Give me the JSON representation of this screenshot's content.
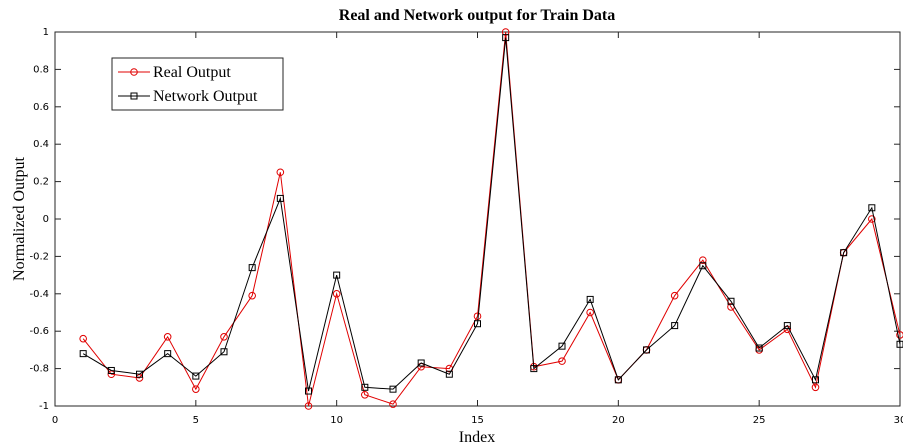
{
  "chart_data": {
    "type": "line",
    "title": "Real and Network output for Train Data",
    "x_label": "Index",
    "y_label": "Normalized Output",
    "x": [
      1,
      2,
      3,
      4,
      5,
      6,
      7,
      8,
      9,
      10,
      11,
      12,
      13,
      14,
      15,
      16,
      17,
      18,
      19,
      20,
      21,
      22,
      23,
      24,
      25,
      26,
      27,
      28,
      29,
      30
    ],
    "series": [
      {
        "name": "Real Output",
        "color": "#e00000",
        "marker": "circle",
        "values": [
          -0.64,
          -0.83,
          -0.85,
          -0.63,
          -0.91,
          -0.63,
          -0.41,
          0.25,
          -1.0,
          -0.4,
          -0.94,
          -0.99,
          -0.79,
          -0.8,
          -0.52,
          1.0,
          -0.79,
          -0.76,
          -0.5,
          -0.86,
          -0.7,
          -0.41,
          -0.22,
          -0.47,
          -0.7,
          -0.59,
          -0.9,
          -0.18,
          0.0,
          -0.62
        ]
      },
      {
        "name": "Network Output",
        "color": "#000000",
        "marker": "square",
        "values": [
          -0.72,
          -0.81,
          -0.83,
          -0.72,
          -0.84,
          -0.71,
          -0.26,
          0.11,
          -0.92,
          -0.3,
          -0.9,
          -0.91,
          -0.77,
          -0.83,
          -0.56,
          0.97,
          -0.8,
          -0.68,
          -0.43,
          -0.86,
          -0.7,
          -0.57,
          -0.25,
          -0.44,
          -0.69,
          -0.57,
          -0.86,
          -0.18,
          0.06,
          -0.67
        ]
      }
    ],
    "xlim": [
      0,
      30
    ],
    "xticks": [
      0,
      5,
      10,
      15,
      20,
      25,
      30
    ],
    "ylim": [
      -1,
      1
    ],
    "yticks": [
      -1,
      -0.8,
      -0.6,
      -0.4,
      -0.2,
      0,
      0.2,
      0.4,
      0.6,
      0.8,
      1
    ],
    "legend": "upper left"
  }
}
